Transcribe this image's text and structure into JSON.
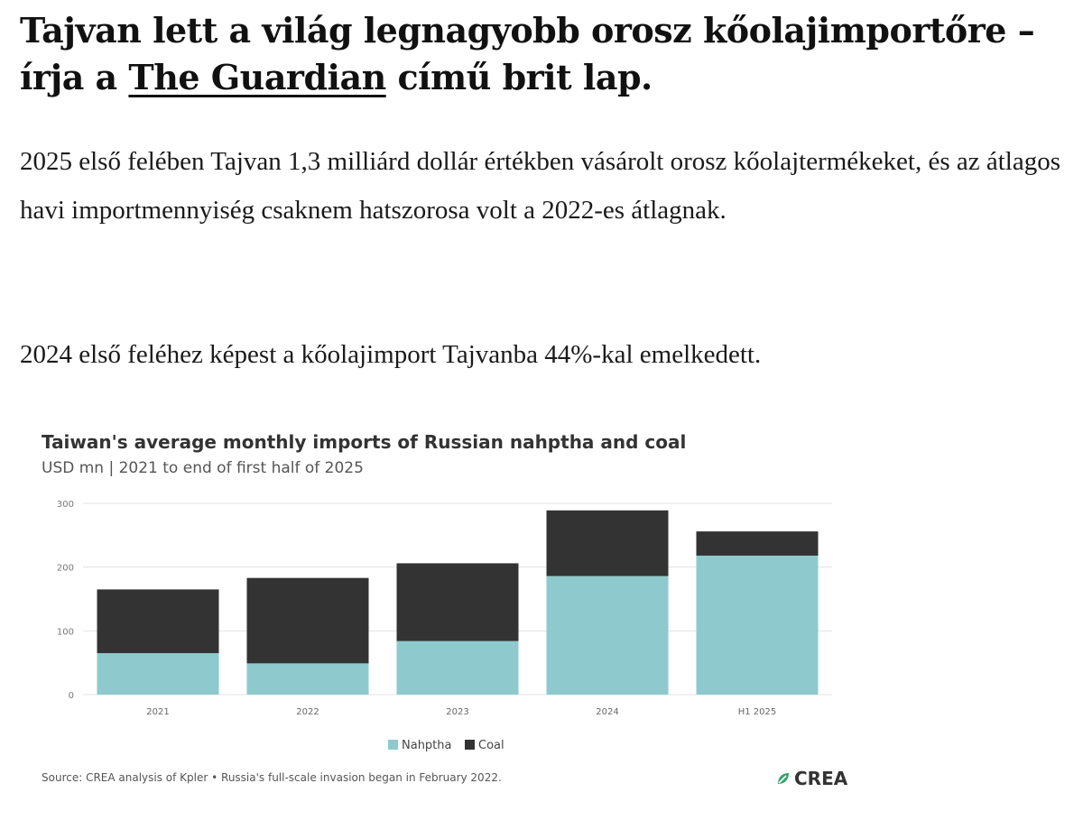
{
  "article": {
    "headline_before": "Tajvan lett a világ legnagyobb orosz kőolajimportőre – írja a ",
    "headline_link": "The Guardian",
    "headline_after": " című brit lap.",
    "paragraph_1": "2025 első felében Tajvan 1,3 milliárd dollár értékben vásárolt orosz kőolajtermékeket, és az átlagos havi importmennyiség csaknem hatszorosa volt a 2022-es átlagnak.",
    "paragraph_2": "2024 első feléhez képest a kőolajimport Tajvanba 44%-kal emelkedett."
  },
  "figure": {
    "source": "Source: CREA analysis of Kpler • Russia's full-scale invasion began in February 2022.",
    "logo_text": "CREA",
    "logo_icon": "crea-leaf-icon"
  },
  "chart_data": {
    "type": "bar",
    "stacked": true,
    "title": "Taiwan's average monthly imports of Russian nahptha and coal",
    "subtitle": "USD mn | 2021 to end of first half of 2025",
    "categories": [
      "2021",
      "2022",
      "2023",
      "2024",
      "H1 2025"
    ],
    "series": [
      {
        "name": "Nahptha",
        "color": "#8ecacd",
        "values": [
          65,
          49,
          84,
          186,
          218
        ]
      },
      {
        "name": "Coal",
        "color": "#333333",
        "values": [
          100,
          134,
          122,
          103,
          38
        ]
      }
    ],
    "ylim": [
      0,
      300
    ],
    "yticks": [
      0,
      100,
      200,
      300
    ],
    "grid": true,
    "legend": "bottom-center",
    "xlabel": "",
    "ylabel": ""
  }
}
